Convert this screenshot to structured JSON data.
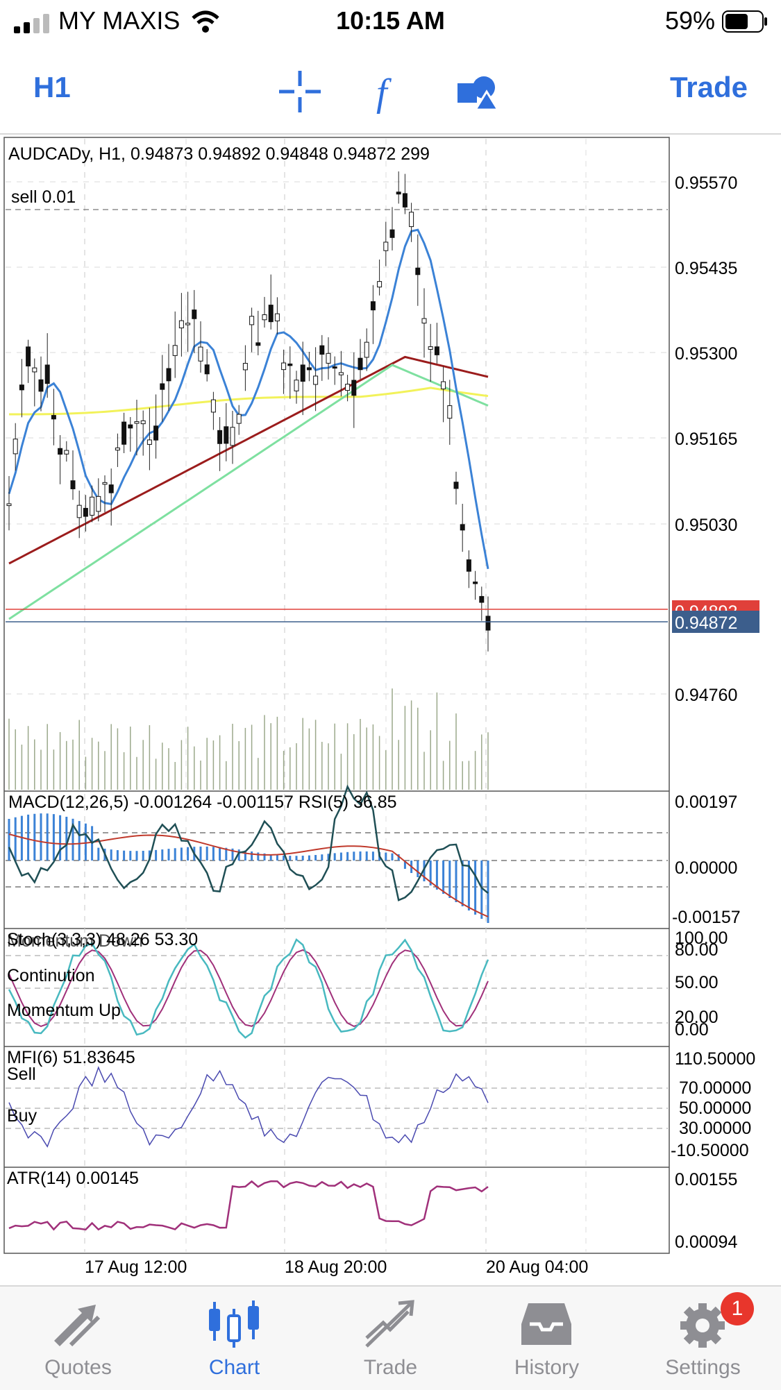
{
  "status": {
    "carrier": "MY MAXIS",
    "time": "10:15 AM",
    "battery": "59%"
  },
  "toolbar": {
    "period": "H1",
    "trade": "Trade",
    "icons": [
      "crosshair-icon",
      "function-icon",
      "objects-icon"
    ]
  },
  "chart": {
    "symbol_info": "AUDCADy, H1, 0.94873 0.94892 0.94848 0.94872 299",
    "order_label": "sell 0.01",
    "price_ticks": [
      "0.95570",
      "0.95435",
      "0.95300",
      "0.95165",
      "0.95030",
      "0.94760"
    ],
    "ask_label": "0.94892",
    "bid_label": "0.94872",
    "macd_label": "MACD(12,26,5) -0.001264 -0.001157 RSI(5) 36.85",
    "macd_ticks": [
      "0.00197",
      "0.00000",
      "-0.00157"
    ],
    "stoch_label": "Stoch(3,3,3) 48.26 53.30",
    "stoch_overlay": "Momentum Down",
    "stoch_continuation": "Continution",
    "stoch_momentum_up": "Momentum Up",
    "stoch_ticks": [
      "100.00",
      "80.00",
      "50.00",
      "20.00",
      "0.00"
    ],
    "mfi_label": "MFI(6) 51.83645",
    "mfi_sell": "Sell",
    "mfi_buy": "Buy",
    "mfi_ticks": [
      "110.50000",
      "70.00000",
      "50.00000",
      "30.00000",
      "-10.50000"
    ],
    "atr_label": "ATR(14) 0.00145",
    "atr_ticks": [
      "0.00155",
      "0.00094"
    ],
    "time_labels": [
      "17 Aug 12:00",
      "18 Aug 20:00",
      "20 Aug 04:00"
    ],
    "colors": {
      "bid_line": "#3c5e8c",
      "ask_line": "#e0403a",
      "ma_fast": "#3b82d6",
      "ma_mid": "#7ee0a0",
      "ma_slow": "#9b1c1c",
      "ma_long": "#f2f25a",
      "macd_hist": "#3b82d6",
      "signal": "#c0392b",
      "stoch_main": "#48b9c0",
      "stoch_signal": "#a0307a",
      "mfi": "#4a4ab0",
      "atr": "#a0307a"
    }
  },
  "tabs": [
    {
      "label": "Quotes",
      "icon": "quotes-icon"
    },
    {
      "label": "Chart",
      "icon": "chart-icon",
      "active": true
    },
    {
      "label": "Trade",
      "icon": "trade-icon"
    },
    {
      "label": "History",
      "icon": "history-icon"
    },
    {
      "label": "Settings",
      "icon": "settings-icon",
      "badge": "1"
    }
  ]
}
